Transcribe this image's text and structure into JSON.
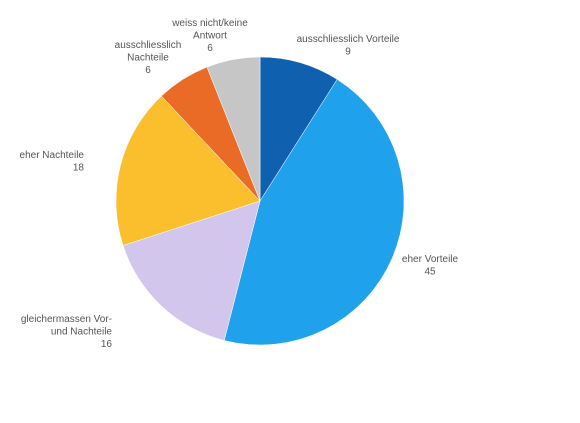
{
  "chart_data": {
    "type": "pie",
    "title": "",
    "start_angle_deg": 0,
    "direction": "clockwise",
    "slices": [
      {
        "label_lines": [
          "ausschliesslich Vorteile"
        ],
        "value": 9,
        "value_text": "9",
        "color": "#1060b0"
      },
      {
        "label_lines": [
          "eher Vorteile"
        ],
        "value": 45,
        "value_text": "45",
        "color": "#1fa1eb"
      },
      {
        "label_lines": [
          "gleichermassen Vor-",
          "und Nachteile"
        ],
        "value": 16,
        "value_text": "16",
        "color": "#d3c6ec"
      },
      {
        "label_lines": [
          "eher Nachteile"
        ],
        "value": 18,
        "value_text": "18",
        "color": "#fbbe2c"
      },
      {
        "label_lines": [
          "ausschliesslich",
          "Nachteile"
        ],
        "value": 6,
        "value_text": "6",
        "color": "#ea6b26"
      },
      {
        "label_lines": [
          "weiss nicht/keine",
          "Antwort"
        ],
        "value": 6,
        "value_text": "6",
        "color": "#c6c6c6"
      }
    ]
  }
}
